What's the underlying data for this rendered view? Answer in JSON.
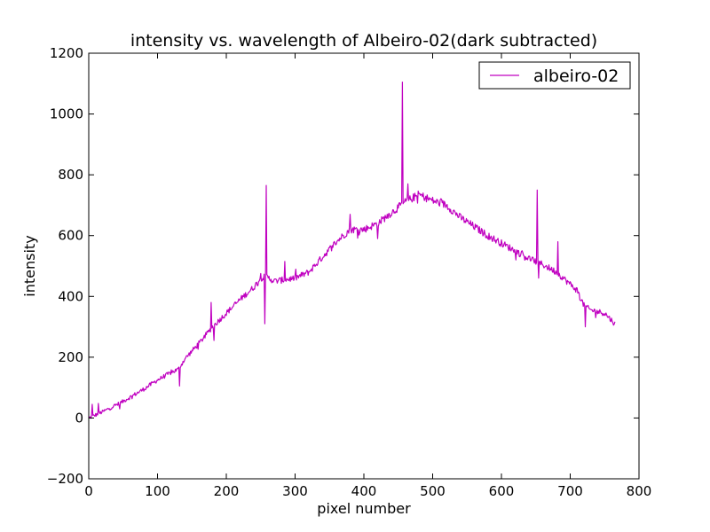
{
  "chart_data": {
    "type": "line",
    "title": "intensity vs. wavelength of Albeiro-02(dark subtracted)",
    "xlabel": "pixel number",
    "ylabel": "intensity",
    "xlim": [
      0,
      800
    ],
    "ylim": [
      -200,
      1200
    ],
    "xticks": [
      0,
      100,
      200,
      300,
      400,
      500,
      600,
      700,
      800
    ],
    "yticks": [
      -200,
      0,
      200,
      400,
      600,
      800,
      1000,
      1200
    ],
    "xtick_labels": [
      "0",
      "100",
      "200",
      "300",
      "400",
      "500",
      "600",
      "700",
      "800"
    ],
    "ytick_labels": [
      "−200",
      "0",
      "200",
      "400",
      "600",
      "800",
      "1000",
      "1200"
    ],
    "grid": false,
    "legend_position": "top-right",
    "series": [
      {
        "name": "albeiro-02",
        "color": "#c000c0",
        "x_range": [
          0,
          765
        ],
        "trend_points": [
          [
            0,
            0
          ],
          [
            20,
            20
          ],
          [
            50,
            55
          ],
          [
            80,
            95
          ],
          [
            100,
            125
          ],
          [
            120,
            150
          ],
          [
            130,
            160
          ],
          [
            140,
            195
          ],
          [
            160,
            245
          ],
          [
            180,
            300
          ],
          [
            200,
            345
          ],
          [
            220,
            390
          ],
          [
            240,
            430
          ],
          [
            250,
            460
          ],
          [
            258,
            465
          ],
          [
            270,
            450
          ],
          [
            300,
            460
          ],
          [
            320,
            480
          ],
          [
            340,
            530
          ],
          [
            360,
            580
          ],
          [
            380,
            620
          ],
          [
            400,
            620
          ],
          [
            420,
            640
          ],
          [
            440,
            675
          ],
          [
            460,
            710
          ],
          [
            480,
            735
          ],
          [
            500,
            715
          ],
          [
            520,
            700
          ],
          [
            540,
            660
          ],
          [
            560,
            630
          ],
          [
            580,
            600
          ],
          [
            600,
            575
          ],
          [
            620,
            550
          ],
          [
            640,
            525
          ],
          [
            660,
            505
          ],
          [
            680,
            480
          ],
          [
            700,
            440
          ],
          [
            710,
            420
          ],
          [
            720,
            370
          ],
          [
            730,
            355
          ],
          [
            740,
            350
          ],
          [
            750,
            345
          ],
          [
            765,
            310
          ]
        ],
        "features": [
          {
            "x": 5,
            "y": 45
          },
          {
            "x": 14,
            "y": 48
          },
          {
            "x": 45,
            "y": 30
          },
          {
            "x": 132,
            "y": 105
          },
          {
            "x": 178,
            "y": 380
          },
          {
            "x": 182,
            "y": 255
          },
          {
            "x": 256,
            "y": 310
          },
          {
            "x": 258,
            "y": 765
          },
          {
            "x": 285,
            "y": 515
          },
          {
            "x": 380,
            "y": 670
          },
          {
            "x": 420,
            "y": 590
          },
          {
            "x": 456,
            "y": 1105
          },
          {
            "x": 464,
            "y": 770
          },
          {
            "x": 652,
            "y": 750
          },
          {
            "x": 654,
            "y": 460
          },
          {
            "x": 682,
            "y": 580
          },
          {
            "x": 722,
            "y": 300
          }
        ],
        "noise_amplitude": 12
      }
    ]
  }
}
